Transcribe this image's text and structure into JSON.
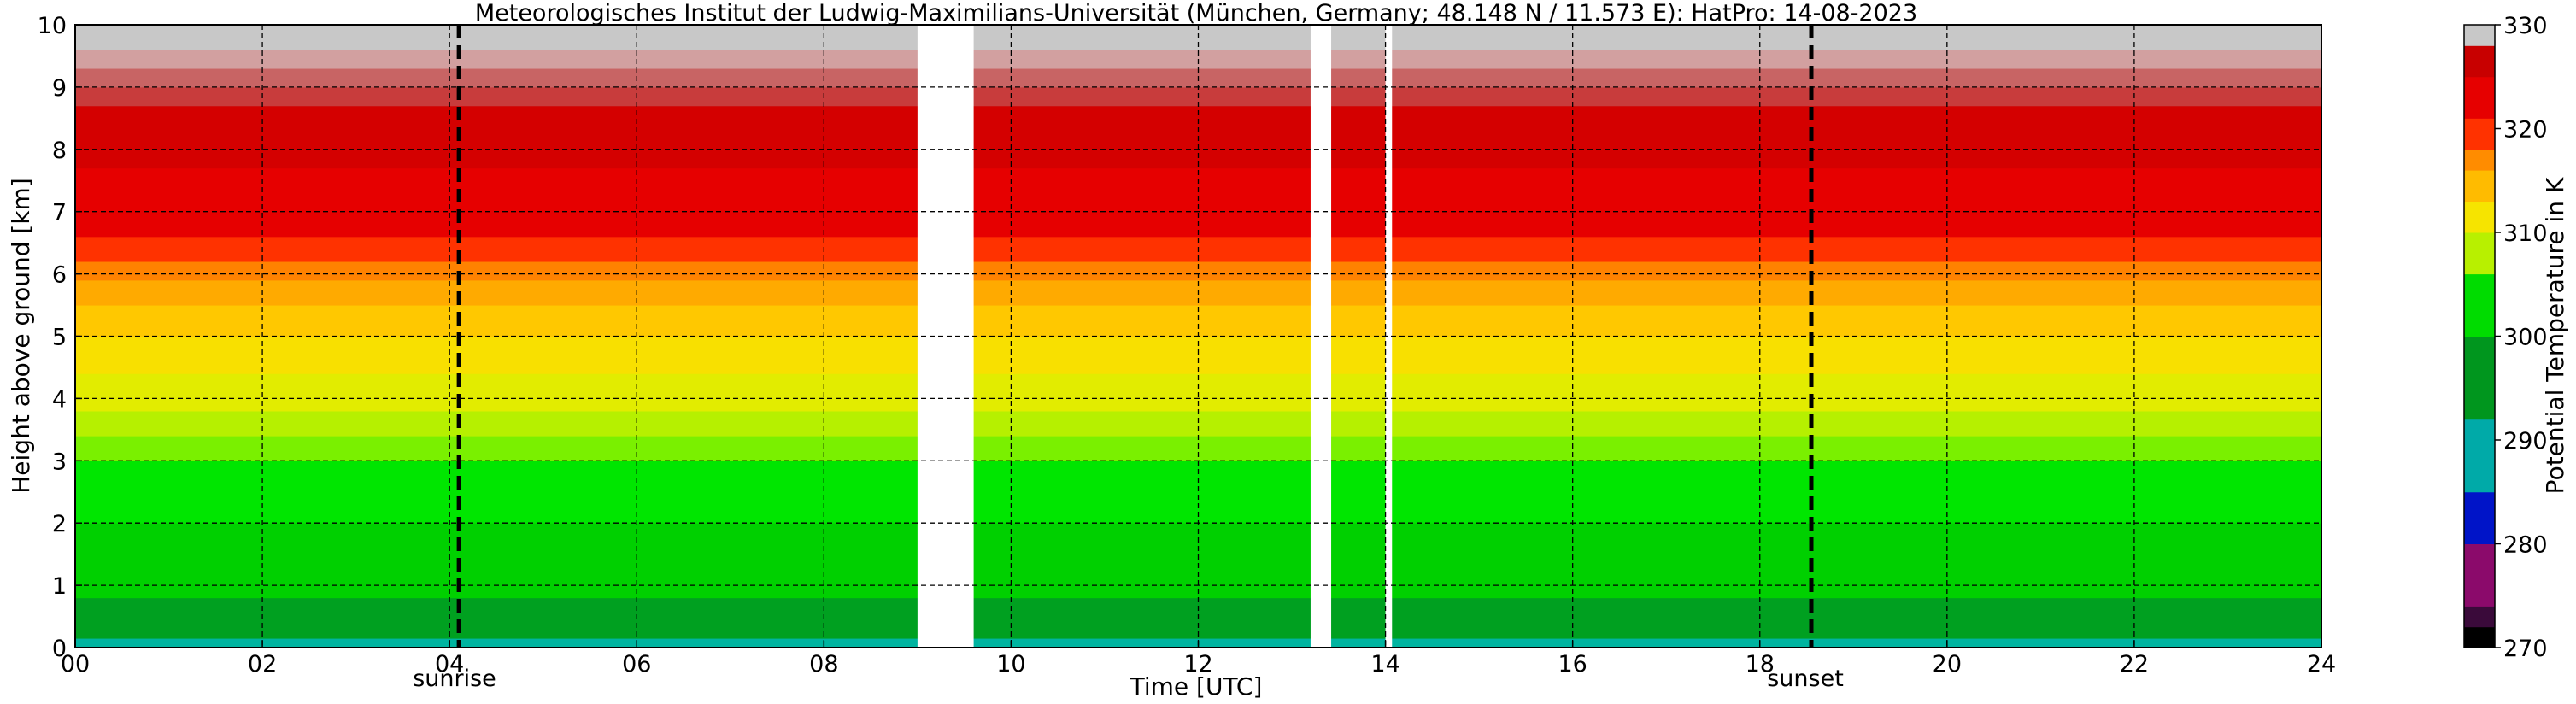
{
  "chart_data": {
    "type": "heatmap",
    "title": "Meteorologisches Institut der Ludwig-Maximilians-Universität (München, Germany; 48.148 N / 11.573 E):    HatPro: 14-08-2023",
    "xlabel": "Time [UTC]",
    "ylabel": "Height above ground [km]",
    "xlim": [
      0,
      24
    ],
    "ylim": [
      0,
      10
    ],
    "x_ticks": [
      "00",
      "02",
      "04",
      "06",
      "08",
      "10",
      "12",
      "14",
      "16",
      "18",
      "20",
      "22",
      "24"
    ],
    "y_ticks": [
      "0",
      "1",
      "2",
      "3",
      "4",
      "5",
      "6",
      "7",
      "8",
      "9",
      "10"
    ],
    "grid": true,
    "colorbar": {
      "label": "Potential Temperature in K",
      "range": [
        270,
        330
      ],
      "ticks": [
        "270",
        "280",
        "290",
        "300",
        "310",
        "320",
        "330"
      ],
      "colors": [
        {
          "from": 270,
          "to": 272,
          "color": "#000000"
        },
        {
          "from": 272,
          "to": 274,
          "color": "#3a0a3a"
        },
        {
          "from": 274,
          "to": 280,
          "color": "#8b0a6b"
        },
        {
          "from": 280,
          "to": 285,
          "color": "#0014c8"
        },
        {
          "from": 285,
          "to": 292,
          "color": "#00aaa8"
        },
        {
          "from": 292,
          "to": 300,
          "color": "#00961e"
        },
        {
          "from": 300,
          "to": 306,
          "color": "#00dc00"
        },
        {
          "from": 306,
          "to": 310,
          "color": "#b8f000"
        },
        {
          "from": 310,
          "to": 313,
          "color": "#f6e400"
        },
        {
          "from": 313,
          "to": 316,
          "color": "#ffbb00"
        },
        {
          "from": 316,
          "to": 318,
          "color": "#ff8c00"
        },
        {
          "from": 318,
          "to": 321,
          "color": "#ff3200"
        },
        {
          "from": 321,
          "to": 325,
          "color": "#e60000"
        },
        {
          "from": 325,
          "to": 328,
          "color": "#c80000"
        },
        {
          "from": 328,
          "to": 330,
          "color": "#c8c8c8"
        }
      ]
    },
    "profile": [
      {
        "from_km": 0.0,
        "to_km": 0.15,
        "color": "#00b4a0"
      },
      {
        "from_km": 0.15,
        "to_km": 0.8,
        "color": "#00a020"
      },
      {
        "from_km": 0.8,
        "to_km": 2.0,
        "color": "#00d000"
      },
      {
        "from_km": 2.0,
        "to_km": 3.0,
        "color": "#00e600"
      },
      {
        "from_km": 3.0,
        "to_km": 3.4,
        "color": "#7af000"
      },
      {
        "from_km": 3.4,
        "to_km": 3.8,
        "color": "#b6f000"
      },
      {
        "from_km": 3.8,
        "to_km": 4.4,
        "color": "#e2ec00"
      },
      {
        "from_km": 4.4,
        "to_km": 5.0,
        "color": "#f8e000"
      },
      {
        "from_km": 5.0,
        "to_km": 5.5,
        "color": "#ffc800"
      },
      {
        "from_km": 5.5,
        "to_km": 5.9,
        "color": "#ffaa00"
      },
      {
        "from_km": 5.9,
        "to_km": 6.2,
        "color": "#ff8200"
      },
      {
        "from_km": 6.2,
        "to_km": 6.6,
        "color": "#ff3200"
      },
      {
        "from_km": 6.6,
        "to_km": 7.7,
        "color": "#e60000"
      },
      {
        "from_km": 7.7,
        "to_km": 8.7,
        "color": "#d40000"
      },
      {
        "from_km": 8.7,
        "to_km": 9.0,
        "color": "#c83c3c"
      },
      {
        "from_km": 9.0,
        "to_km": 9.3,
        "color": "#c86464"
      },
      {
        "from_km": 9.3,
        "to_km": 9.6,
        "color": "#d2a0a0"
      },
      {
        "from_km": 9.6,
        "to_km": 10.0,
        "color": "#c8c8c8"
      }
    ],
    "data_gaps_utc": [
      [
        9.0,
        9.6
      ],
      [
        13.2,
        13.42
      ],
      [
        14.0,
        14.07
      ]
    ],
    "sunrise_utc": 4.1,
    "sunset_utc": 18.55,
    "annotations": {
      "sunrise": "sunrise",
      "sunset": "sunset"
    }
  }
}
